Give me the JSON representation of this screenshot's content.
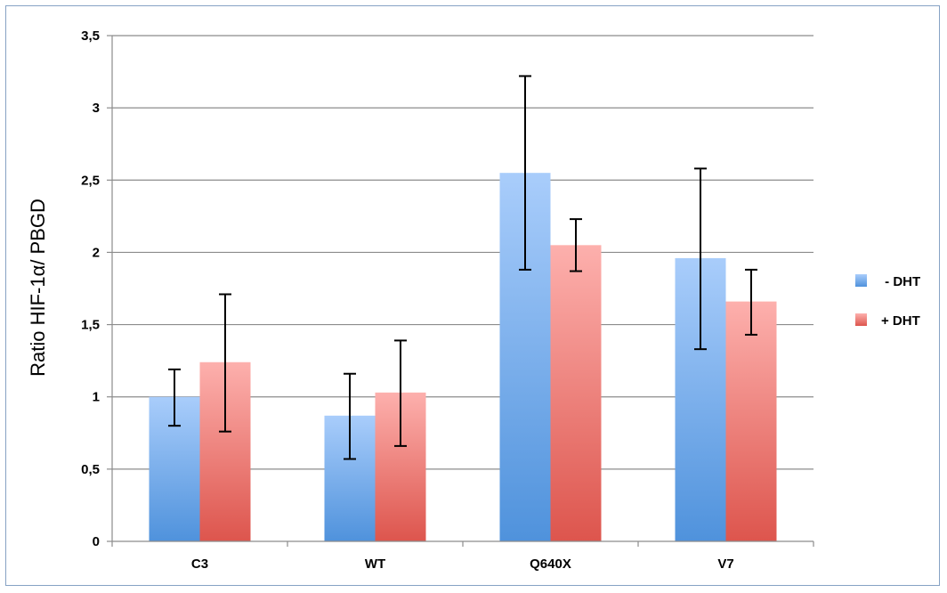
{
  "chart_data": {
    "type": "bar",
    "title": "",
    "xlabel": "",
    "ylabel": "Ratio HIF-1α/ PBGD",
    "ylim": [
      0,
      3.5
    ],
    "yticks": [
      "0",
      "0,5",
      "1",
      "1,5",
      "2",
      "2,5",
      "3",
      "3,5"
    ],
    "ytick_values": [
      0,
      0.5,
      1,
      1.5,
      2,
      2.5,
      3,
      3.5
    ],
    "categories": [
      "C3",
      "WT",
      "Q640X",
      "V7"
    ],
    "grid": true,
    "legend_position": "right",
    "series": [
      {
        "name": " - DHT",
        "values": [
          1.0,
          0.87,
          2.55,
          1.96
        ],
        "error_low": [
          0.8,
          0.57,
          1.88,
          1.33
        ],
        "error_high": [
          1.19,
          1.16,
          3.22,
          2.58
        ],
        "color_top": "#a9cdfb",
        "color_bottom": "#4f92dc"
      },
      {
        "name": "+ DHT",
        "values": [
          1.24,
          1.03,
          2.05,
          1.66
        ],
        "error_low": [
          0.76,
          0.66,
          1.87,
          1.43
        ],
        "error_high": [
          1.71,
          1.39,
          2.23,
          1.88
        ],
        "color_top": "#fdb0ad",
        "color_bottom": "#dd554d"
      }
    ]
  }
}
